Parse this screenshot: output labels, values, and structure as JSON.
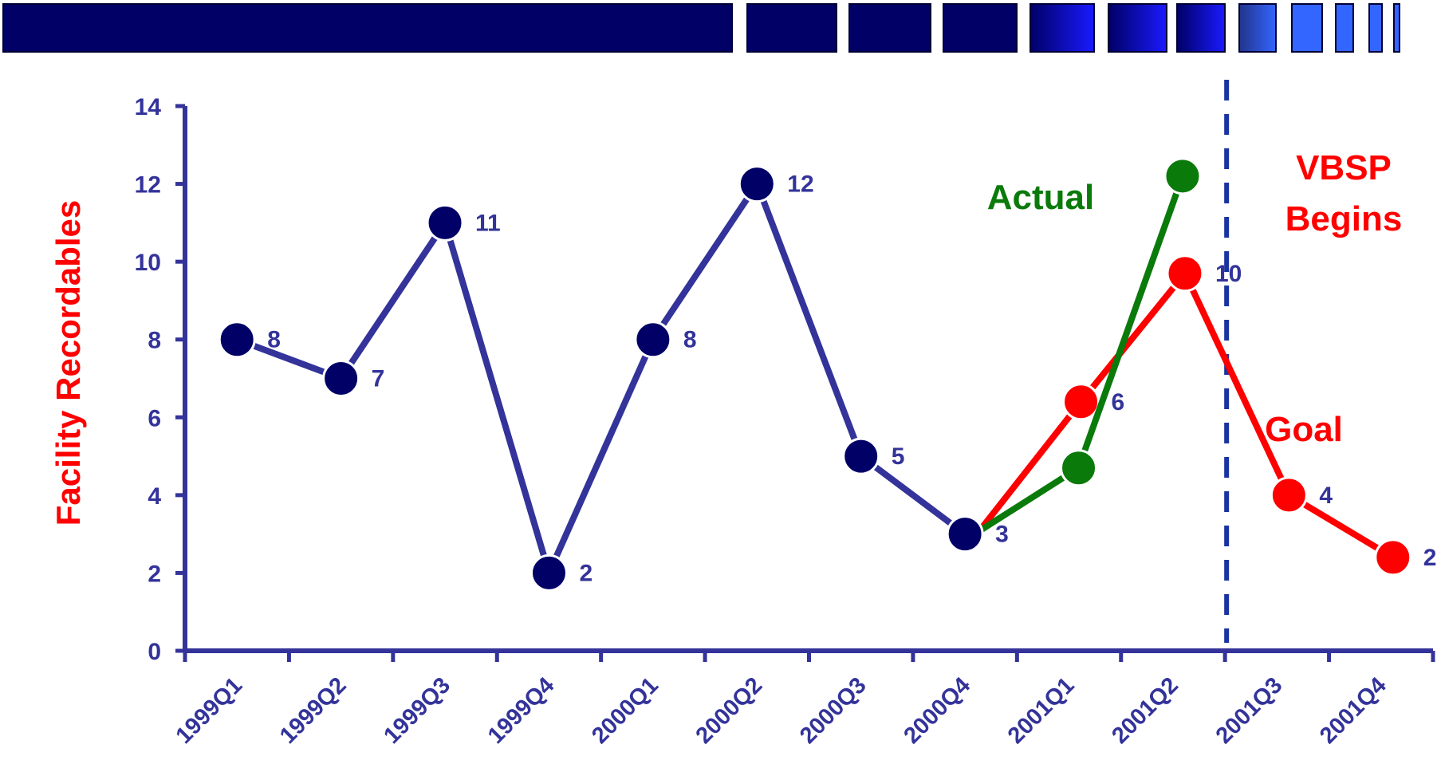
{
  "colors": {
    "historical": "#33339a",
    "marker_dark": "#000066",
    "actual": "#0a7a0a",
    "goal": "#ff0000",
    "vbsp_line": "#1a33a0",
    "axis": "#33339a",
    "banner_dark": "#000066",
    "banner_light": "#3366ff"
  },
  "chart_data": {
    "type": "line",
    "ylabel": "Facility Recordables",
    "ylim": [
      0,
      14
    ],
    "yticks": [
      0,
      2,
      4,
      6,
      8,
      10,
      12,
      14
    ],
    "categories": [
      "1999Q1",
      "1999Q2",
      "1999Q3",
      "1999Q4",
      "2000Q1",
      "2000Q2",
      "2000Q3",
      "2000Q4",
      "2001Q1",
      "2001Q2",
      "2001Q3",
      "2001Q4"
    ],
    "series": [
      {
        "key": "historical",
        "values": [
          8,
          7,
          11,
          2,
          8,
          12,
          5,
          3,
          null,
          null,
          null,
          null
        ],
        "labels": [
          "8",
          "7",
          "11",
          "2",
          "8",
          "12",
          "5",
          "3",
          "",
          "",
          "",
          ""
        ]
      },
      {
        "key": "actual",
        "name": "Actual",
        "values": [
          null,
          null,
          null,
          null,
          null,
          null,
          null,
          3,
          4.7,
          12.2,
          null,
          null
        ],
        "labels": [
          "",
          "",
          "",
          "",
          "",
          "",
          "",
          "",
          "",
          "",
          "",
          ""
        ]
      },
      {
        "key": "goal",
        "name": "Goal",
        "values": [
          null,
          null,
          null,
          null,
          null,
          null,
          null,
          3,
          6.4,
          9.7,
          4,
          2.4
        ],
        "labels": [
          "",
          "",
          "",
          "",
          "",
          "",
          "",
          "",
          "6",
          "10",
          "4",
          "2"
        ]
      }
    ],
    "annotations": {
      "actual": "Actual",
      "goal": "Goal",
      "vbsp_line1": "VBSP",
      "vbsp_line2": "Begins"
    },
    "grid": false,
    "legend": "none"
  }
}
